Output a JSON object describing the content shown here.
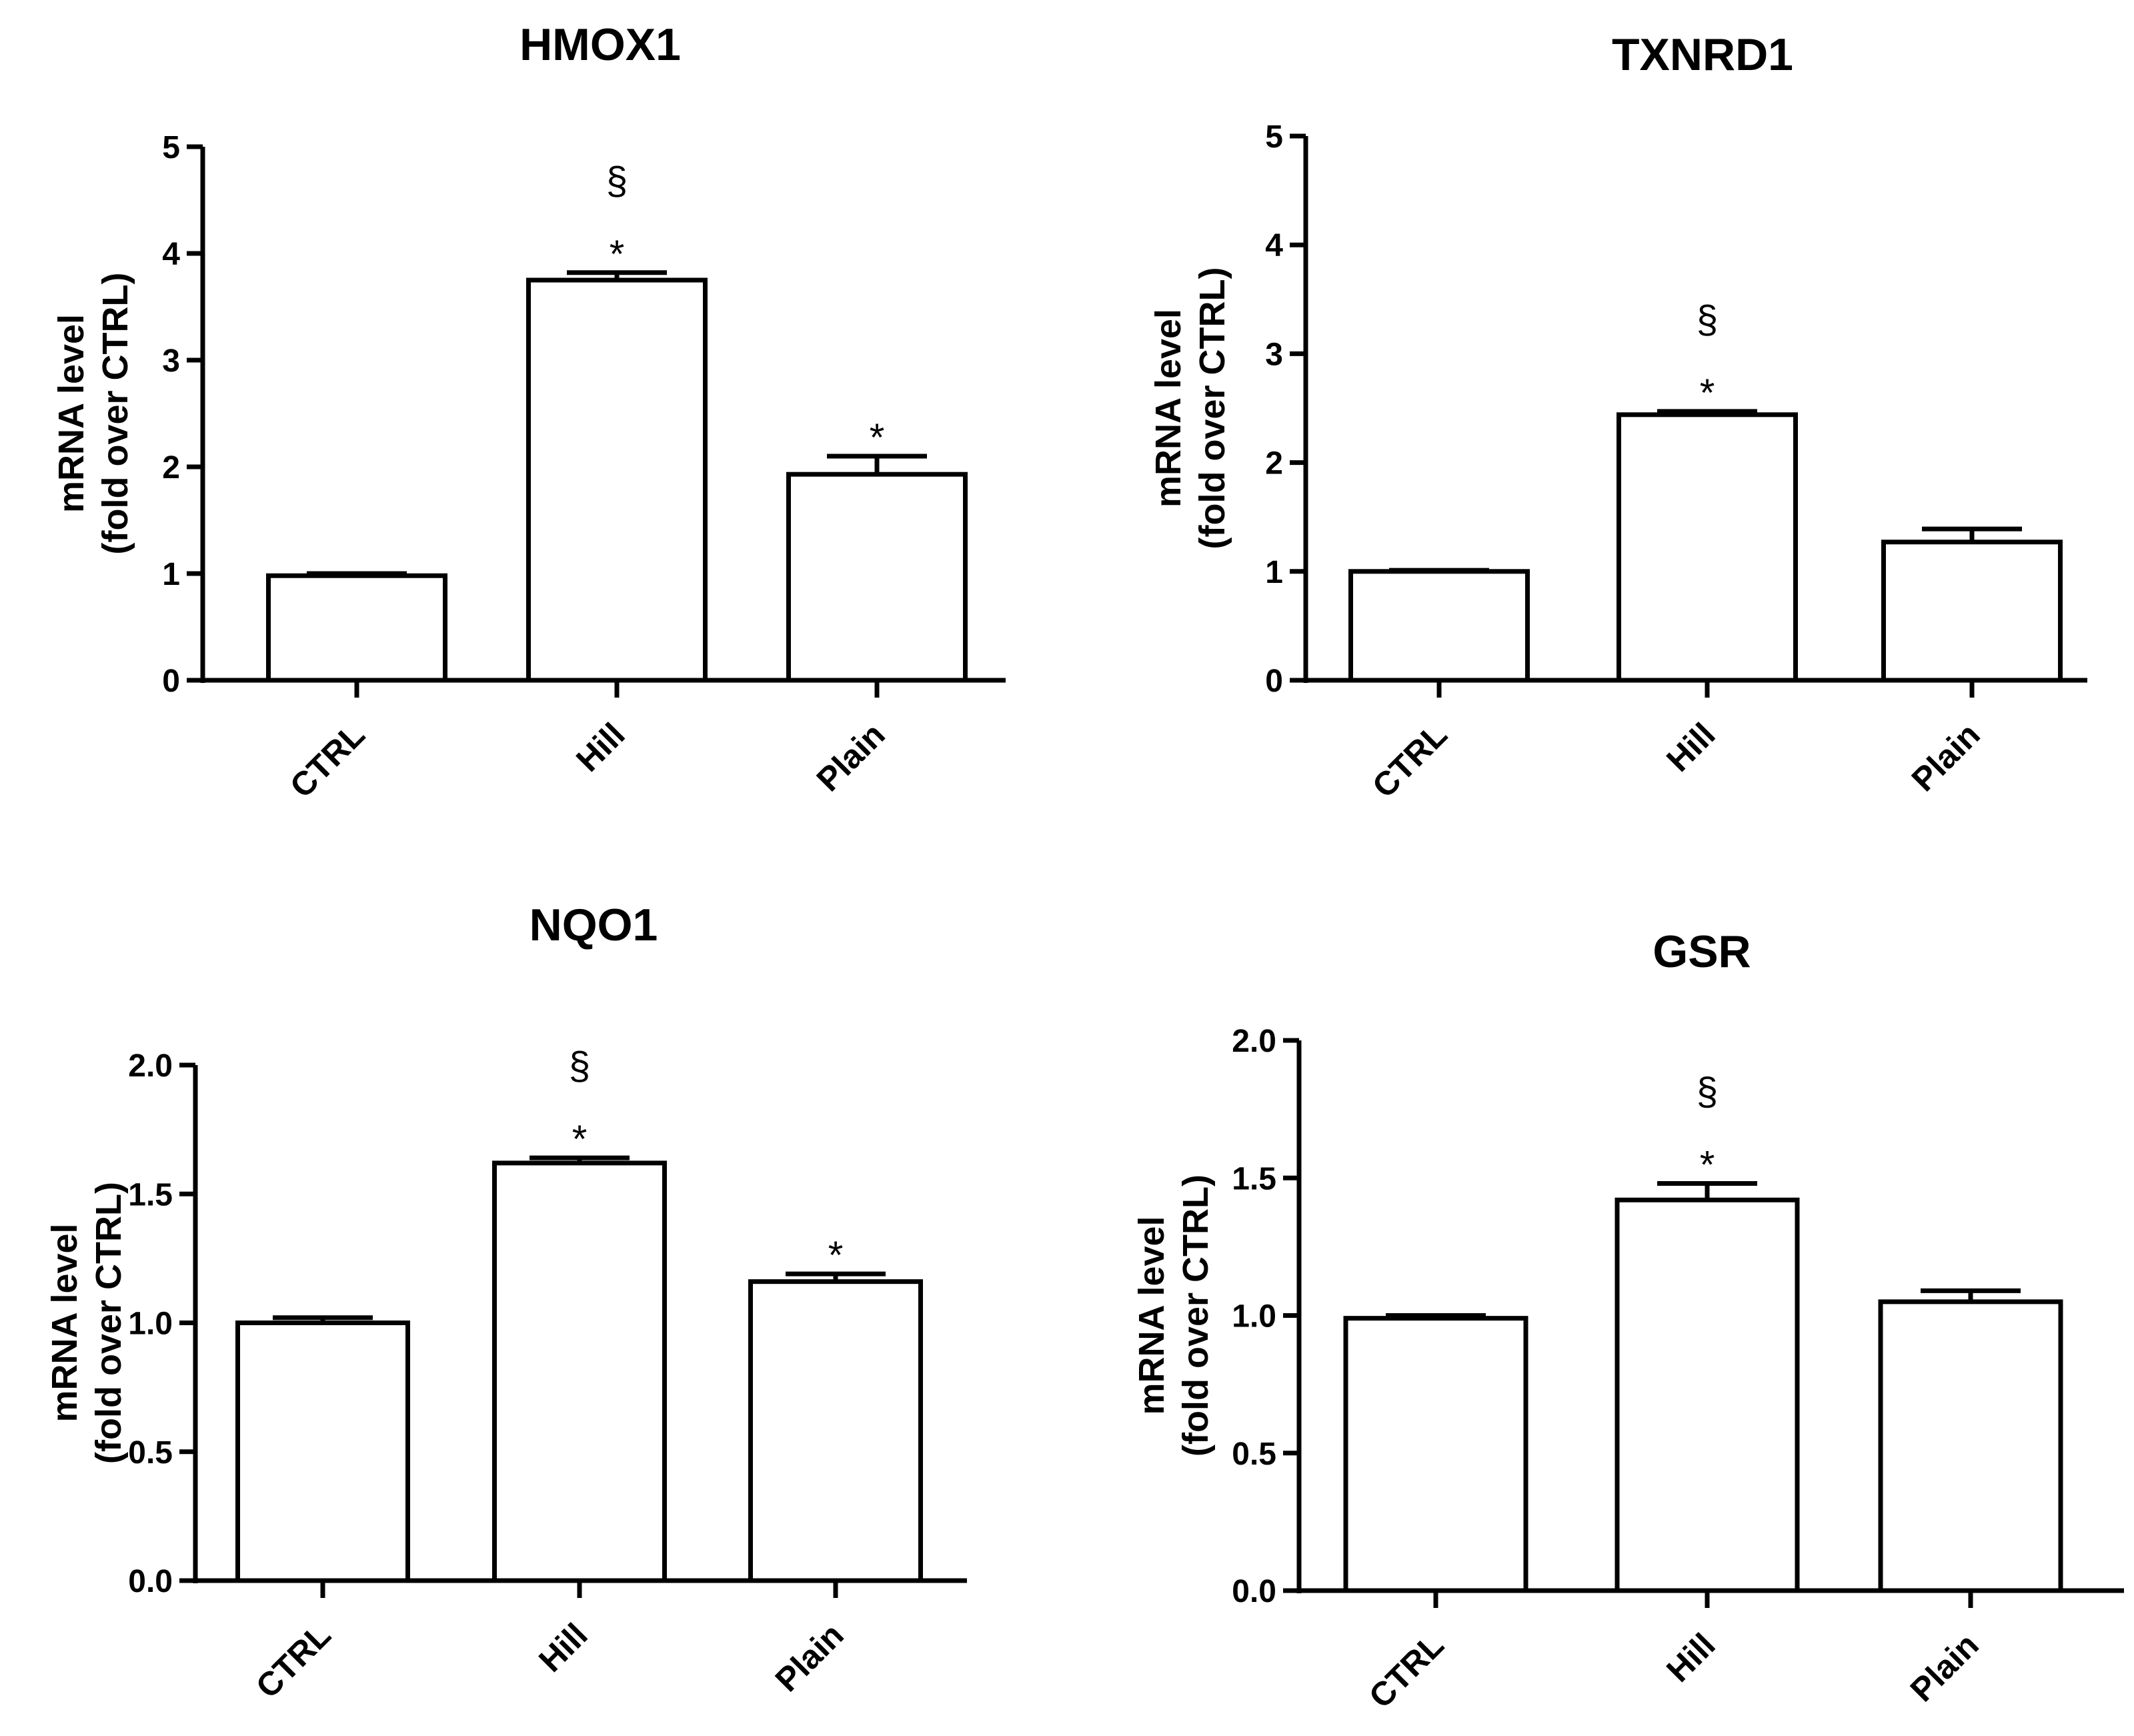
{
  "chart_data": [
    {
      "type": "bar",
      "title": "HMOX1",
      "ylabel": [
        "mRNA level",
        "(fold over CTRL)"
      ],
      "categories": [
        "CTRL",
        "Hill",
        "Plain"
      ],
      "values": [
        0.98,
        3.75,
        1.93
      ],
      "errors": [
        0.02,
        0.07,
        0.17
      ],
      "annotations": [
        [],
        [
          "*",
          "§"
        ],
        [
          "*"
        ]
      ],
      "ylim": [
        0,
        5
      ],
      "yticks": [
        "0",
        "1",
        "2",
        "3",
        "4",
        "5"
      ]
    },
    {
      "type": "bar",
      "title": "TXNRD1",
      "ylabel": [
        "mRNA level",
        "(fold over CTRL)"
      ],
      "categories": [
        "CTRL",
        "Hill",
        "Plain"
      ],
      "values": [
        1.0,
        2.44,
        1.27
      ],
      "errors": [
        0.01,
        0.03,
        0.12
      ],
      "annotations": [
        [],
        [
          "*",
          "§"
        ],
        []
      ],
      "ylim": [
        0,
        5
      ],
      "yticks": [
        "0",
        "1",
        "2",
        "3",
        "4",
        "5"
      ]
    },
    {
      "type": "bar",
      "title": "NQO1",
      "ylabel": [
        "mRNA level",
        "(fold over CTRL)"
      ],
      "categories": [
        "CTRL",
        "Hill",
        "Plain"
      ],
      "values": [
        1.0,
        1.62,
        1.16
      ],
      "errors": [
        0.02,
        0.02,
        0.03
      ],
      "annotations": [
        [],
        [
          "*",
          "§"
        ],
        [
          "*"
        ]
      ],
      "ylim": [
        0,
        2.0
      ],
      "yticks": [
        "0.0",
        "0.5",
        "1.0",
        "1.5",
        "2.0"
      ]
    },
    {
      "type": "bar",
      "title": "GSR",
      "ylabel": [
        "mRNA level",
        "(fold over CTRL)"
      ],
      "categories": [
        "CTRL",
        "Hill",
        "Plain"
      ],
      "values": [
        0.99,
        1.42,
        1.05
      ],
      "errors": [
        0.01,
        0.06,
        0.04
      ],
      "annotations": [
        [],
        [
          "*",
          "§"
        ],
        []
      ],
      "ylim": [
        0,
        2.0
      ],
      "yticks": [
        "0.0",
        "0.5",
        "1.0",
        "1.5",
        "2.0"
      ]
    }
  ]
}
